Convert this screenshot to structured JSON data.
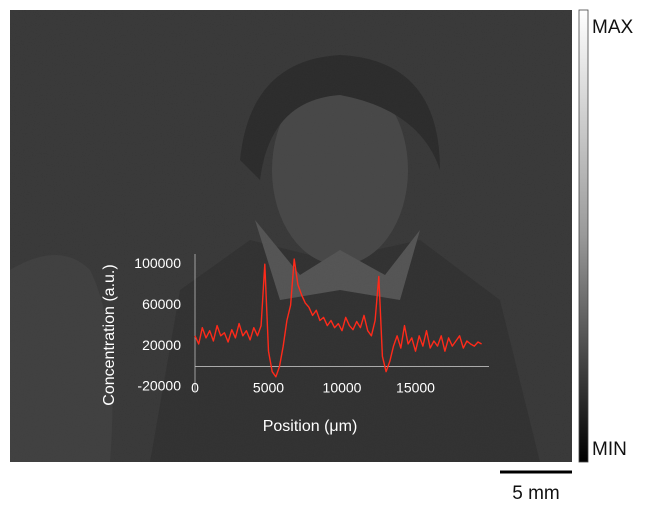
{
  "chart_data": {
    "type": "line",
    "x_label": "Position (μm)",
    "y_label": "Concentration (a.u.)",
    "x": [
      0,
      250,
      500,
      750,
      1000,
      1250,
      1500,
      1750,
      2000,
      2250,
      2500,
      2750,
      3000,
      3250,
      3500,
      3750,
      4000,
      4250,
      4500,
      4750,
      5000,
      5250,
      5500,
      5750,
      6000,
      6250,
      6500,
      6750,
      7000,
      7250,
      7500,
      7750,
      8000,
      8250,
      8500,
      8750,
      9000,
      9250,
      9500,
      9750,
      10000,
      10250,
      10500,
      10750,
      11000,
      11250,
      11500,
      11750,
      12000,
      12250,
      12500,
      12750,
      13000,
      13250,
      13500,
      13750,
      14000,
      14250,
      14500,
      14750,
      15000,
      15250,
      15500,
      15750,
      16000,
      16250,
      16500,
      16750,
      17000,
      17250,
      17500,
      17750,
      18000,
      18250,
      18500,
      18750,
      19000,
      19250,
      19500
    ],
    "values": [
      30000,
      22000,
      38000,
      28000,
      35000,
      25000,
      40000,
      30000,
      33000,
      24000,
      36000,
      28000,
      42000,
      30000,
      35000,
      26000,
      38000,
      30000,
      40000,
      100000,
      15000,
      -5000,
      -10000,
      0,
      20000,
      45000,
      60000,
      105000,
      80000,
      70000,
      62000,
      58000,
      50000,
      55000,
      45000,
      48000,
      40000,
      45000,
      38000,
      42000,
      35000,
      48000,
      40000,
      36000,
      44000,
      38000,
      50000,
      35000,
      30000,
      45000,
      88000,
      10000,
      -5000,
      5000,
      20000,
      30000,
      18000,
      40000,
      22000,
      28000,
      15000,
      30000,
      20000,
      35000,
      18000,
      25000,
      20000,
      30000,
      15000,
      28000,
      20000,
      25000,
      30000,
      18000,
      25000,
      22000,
      20000,
      24000,
      22000
    ],
    "color": "#ff2a1a",
    "xlim": [
      0,
      20000
    ],
    "xticks": [
      0,
      5000,
      10000,
      15000
    ],
    "ylim": [
      -20000,
      110000
    ],
    "yticks": [
      100000,
      60000,
      20000,
      -20000
    ]
  },
  "image": {
    "colorbar_max": "MAX",
    "colorbar_min": "MIN",
    "scale_bar": "5 mm"
  }
}
